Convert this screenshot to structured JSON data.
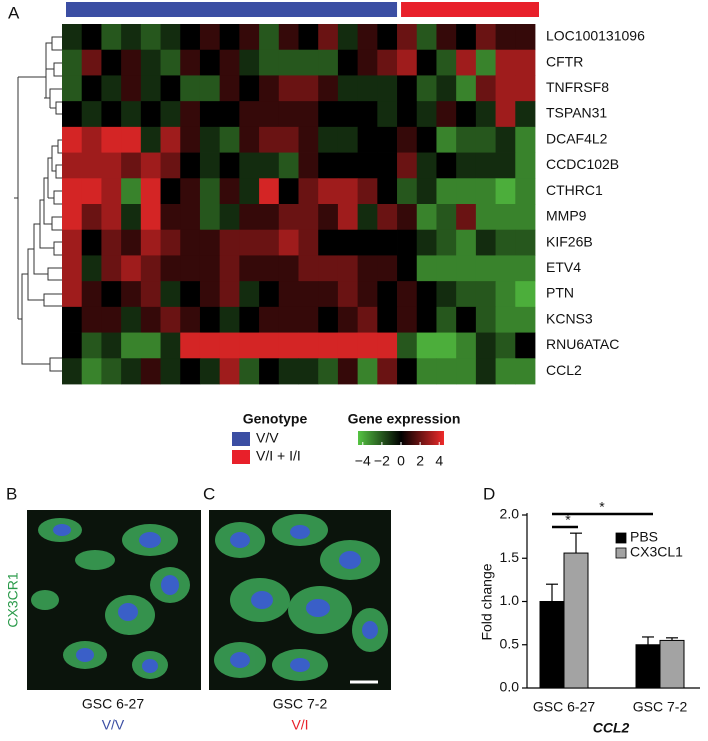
{
  "panel_labels": [
    "A",
    "B",
    "C",
    "D"
  ],
  "images": [
    {
      "marker": "CX3CR1",
      "cell_line": "GSC 6-27",
      "genotype": "V/V"
    },
    {
      "cell_line": "GSC 7-2",
      "genotype": "V/I"
    }
  ],
  "chart_data": [
    {
      "type": "heatmap",
      "rows": [
        "LOC100131096",
        "CFTR",
        "TNFRSF8",
        "TSPAN31",
        "DCAF4L2",
        "CCDC102B",
        "CTHRC1",
        "MMP9",
        "KIF26B",
        "ETV4",
        "PTN",
        "KCNS3",
        "RNU6ATAC",
        "CCL2"
      ],
      "groups": [
        {
          "name": "V/V",
          "color": "#3b4ea3",
          "count": 17
        },
        {
          "name": "V/I + I/I",
          "color": "#e8202a",
          "count": 7
        }
      ],
      "group_legend_title": "Genotype",
      "colorbar_title": "Gene expression",
      "zlim": [
        -4.5,
        4.5
      ],
      "zticks": [
        {
          "value": -4,
          "label": "−4"
        },
        {
          "value": -2,
          "label": "−2"
        },
        0,
        2,
        4
      ],
      "colors": {
        "low": "#55c442",
        "mid": "#000000",
        "high": "#ee2a2a"
      },
      "values": [
        [
          -1,
          0,
          -2,
          -1,
          -2,
          -1,
          0,
          1,
          0,
          1,
          -2,
          1,
          0,
          2,
          -1,
          1,
          0,
          2,
          -2,
          1,
          0,
          2,
          1,
          1
        ],
        [
          -2,
          2,
          0,
          1,
          -1,
          -2,
          1,
          0,
          1,
          -1,
          -2,
          -2,
          -2,
          -2,
          0,
          1,
          2,
          3,
          0,
          -2,
          3,
          -3,
          3,
          3
        ],
        [
          -2,
          0,
          -1,
          1,
          -1,
          0,
          -2,
          -2,
          1,
          0,
          1,
          2,
          2,
          1,
          -1,
          -1,
          -1,
          0,
          -2,
          -1,
          -3,
          2,
          3,
          3
        ],
        [
          0,
          -1,
          0,
          -1,
          0,
          -1,
          1,
          0,
          0,
          1,
          1,
          1,
          1,
          0,
          0,
          0,
          -1,
          0,
          -1,
          1,
          0,
          -1,
          3,
          -1
        ],
        [
          4,
          3,
          4,
          4,
          -1,
          3,
          1,
          -1,
          -2,
          1,
          2,
          2,
          1,
          -1,
          -1,
          0,
          0,
          1,
          0,
          -3,
          -2,
          -2,
          -1,
          -3
        ],
        [
          3,
          3,
          3,
          2,
          3,
          2,
          0,
          -1,
          0,
          -1,
          -1,
          -2,
          1,
          0,
          0,
          0,
          0,
          2,
          -1,
          0,
          -1,
          -1,
          -1,
          -3
        ],
        [
          4,
          4,
          3,
          -3,
          4,
          0,
          1,
          -2,
          1,
          -1,
          4,
          0,
          2,
          3,
          3,
          2,
          0,
          -2,
          -1,
          -3,
          -3,
          -3,
          -4,
          -3
        ],
        [
          4,
          2,
          3,
          -1,
          4,
          1,
          1,
          -2,
          -1,
          1,
          1,
          2,
          2,
          1,
          3,
          -1,
          2,
          1,
          -3,
          -2,
          2,
          -3,
          -3,
          -3
        ],
        [
          3,
          0,
          2,
          1,
          3,
          2,
          1,
          1,
          2,
          2,
          2,
          3,
          2,
          0,
          0,
          0,
          0,
          0,
          -1,
          -2,
          -3,
          -1,
          -2,
          -2
        ],
        [
          3,
          -1,
          2,
          3,
          2,
          1,
          1,
          1,
          2,
          1,
          1,
          1,
          2,
          2,
          2,
          1,
          1,
          0,
          -3,
          -3,
          -3,
          -3,
          -3,
          -3
        ],
        [
          3,
          1,
          0,
          1,
          2,
          -1,
          0,
          1,
          2,
          -1,
          0,
          1,
          1,
          1,
          2,
          1,
          0,
          1,
          0,
          -1,
          -2,
          -2,
          -3,
          -4
        ],
        [
          0,
          1,
          1,
          -1,
          1,
          2,
          1,
          0,
          -1,
          0,
          1,
          1,
          1,
          0,
          1,
          2,
          0,
          1,
          0,
          -2,
          0,
          -2,
          -3,
          -3
        ],
        [
          0,
          -2,
          -1,
          -3,
          -3,
          -1,
          4,
          4,
          4,
          4,
          4,
          4,
          4,
          4,
          4,
          4,
          4,
          -2,
          -4,
          -4,
          -3,
          -1,
          -2,
          0
        ],
        [
          -1,
          -3,
          -2,
          -1,
          1,
          -1,
          0,
          -1,
          3,
          -2,
          0,
          -1,
          -1,
          -2,
          1,
          -3,
          2,
          0,
          -3,
          -3,
          -3,
          -1,
          -3,
          -3
        ]
      ]
    },
    {
      "type": "bar",
      "categories": [
        "GSC 6-27",
        "GSC 7-2"
      ],
      "xlabel": "CCL2",
      "ylabel": "Fold change",
      "ylim": [
        0,
        2
      ],
      "yticks": [
        {
          "value": 0,
          "label": "0.0"
        },
        {
          "value": 0.5,
          "label": "0.5"
        },
        {
          "value": 1,
          "label": "1.0"
        },
        {
          "value": 1.5,
          "label": "1.5"
        },
        {
          "value": 2,
          "label": "2.0"
        }
      ],
      "series": [
        {
          "name": "PBS",
          "color": "#000000",
          "values": [
            1.0,
            0.5
          ],
          "errors": [
            0.2,
            0.09
          ]
        },
        {
          "name": "CX3CL1",
          "color": "#a3a3a3",
          "values": [
            1.56,
            0.55
          ],
          "errors": [
            0.23,
            0.03
          ]
        }
      ],
      "annotations": [
        "*",
        "*"
      ]
    }
  ]
}
